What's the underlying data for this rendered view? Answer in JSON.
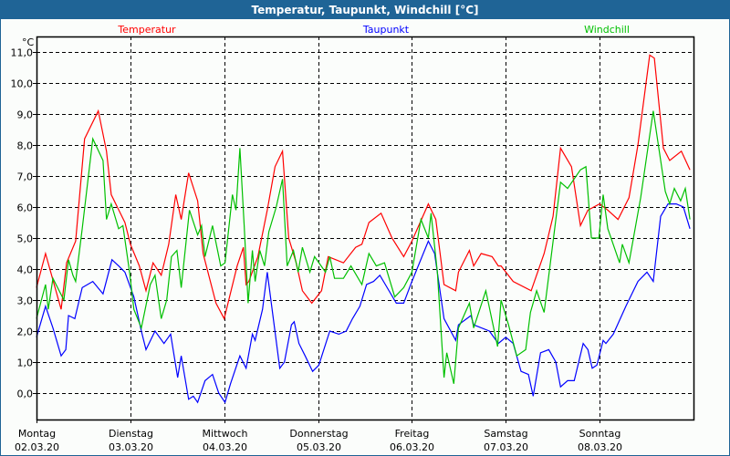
{
  "window": {
    "title": "Temperatur, Taupunkt, Windchill [°C]"
  },
  "chart_data": {
    "type": "line",
    "title": "Temperatur, Taupunkt, Windchill [°C]",
    "ylabel": "°C",
    "xlabel": "",
    "x_unit": "hours since Montag 02.03.20 00:00",
    "xlim": [
      0,
      168
    ],
    "ylim": [
      -0.85,
      11.5
    ],
    "grid": true,
    "yticks": [
      0,
      1,
      2,
      3,
      4,
      5,
      6,
      7,
      8,
      9,
      10,
      11
    ],
    "ytick_labels": [
      "0,0",
      "1,0",
      "2,0",
      "3,0",
      "4,0",
      "5,0",
      "6,0",
      "7,0",
      "8,0",
      "9,0",
      "10,0",
      "11,0"
    ],
    "xticks": [
      0,
      24,
      48,
      72,
      96,
      120,
      144
    ],
    "days": [
      {
        "name": "Montag",
        "date": "02.03.20"
      },
      {
        "name": "Dienstag",
        "date": "03.03.20"
      },
      {
        "name": "Mittwoch",
        "date": "04.03.20"
      },
      {
        "name": "Donnerstag",
        "date": "05.03.20"
      },
      {
        "name": "Freitag",
        "date": "06.03.20"
      },
      {
        "name": "Samstag",
        "date": "07.03.20"
      },
      {
        "name": "Sonntag",
        "date": "08.03.20"
      }
    ],
    "legend_position": "top",
    "series": [
      {
        "name": "Temperatur",
        "color": "#ff0000",
        "points": [
          [
            0,
            3.4
          ],
          [
            2.3,
            4.5
          ],
          [
            6.3,
            2.7
          ],
          [
            7.7,
            4.2
          ],
          [
            10,
            4.9
          ],
          [
            12.3,
            8.2
          ],
          [
            15.8,
            9.1
          ],
          [
            17.9,
            7.8
          ],
          [
            19.1,
            6.4
          ],
          [
            22.6,
            5.5
          ],
          [
            24,
            4.8
          ],
          [
            26.3,
            4.1
          ],
          [
            28,
            3.3
          ],
          [
            29.8,
            4.2
          ],
          [
            31.9,
            3.8
          ],
          [
            33.8,
            4.8
          ],
          [
            35.6,
            6.4
          ],
          [
            37,
            5.6
          ],
          [
            38.9,
            7.1
          ],
          [
            41.2,
            6.2
          ],
          [
            42.6,
            4.5
          ],
          [
            45.9,
            2.9
          ],
          [
            48,
            2.4
          ],
          [
            51.3,
            4.1
          ],
          [
            52.9,
            4.7
          ],
          [
            53.6,
            3.5
          ],
          [
            54.3,
            3.6
          ],
          [
            56.6,
            4.4
          ],
          [
            59,
            5.9
          ],
          [
            61,
            7.3
          ],
          [
            62.9,
            7.8
          ],
          [
            64.5,
            5.0
          ],
          [
            66.4,
            4.2
          ],
          [
            68,
            3.3
          ],
          [
            70.4,
            2.9
          ],
          [
            72.9,
            3.3
          ],
          [
            74.6,
            4.4
          ],
          [
            78.5,
            4.2
          ],
          [
            81.6,
            4.7
          ],
          [
            83.2,
            4.8
          ],
          [
            85,
            5.5
          ],
          [
            88.1,
            5.8
          ],
          [
            90.9,
            5.0
          ],
          [
            93.9,
            4.4
          ],
          [
            96,
            4.9
          ],
          [
            100.2,
            6.1
          ],
          [
            102.1,
            5.6
          ],
          [
            104.2,
            3.5
          ],
          [
            107.2,
            3.3
          ],
          [
            107.9,
            3.9
          ],
          [
            110.7,
            4.6
          ],
          [
            111.8,
            4.1
          ],
          [
            113.7,
            4.5
          ],
          [
            116.5,
            4.4
          ],
          [
            118.1,
            4.1
          ],
          [
            118.8,
            4.1
          ],
          [
            121.9,
            3.6
          ],
          [
            126.5,
            3.3
          ],
          [
            129.8,
            4.5
          ],
          [
            132.1,
            5.7
          ],
          [
            134,
            7.9
          ],
          [
            136.8,
            7.3
          ],
          [
            139.1,
            5.4
          ],
          [
            141,
            5.9
          ],
          [
            144,
            6.1
          ],
          [
            146.1,
            5.9
          ],
          [
            148.7,
            5.6
          ],
          [
            151.5,
            6.3
          ],
          [
            153.8,
            8.0
          ],
          [
            156.8,
            10.9
          ],
          [
            158,
            10.8
          ],
          [
            160.3,
            7.9
          ],
          [
            161.9,
            7.5
          ],
          [
            164.9,
            7.8
          ],
          [
            167.1,
            7.2
          ]
        ]
      },
      {
        "name": "Taupunkt",
        "color": "#0000ff",
        "points": [
          [
            0,
            1.8
          ],
          [
            2.3,
            2.8
          ],
          [
            4.2,
            2.1
          ],
          [
            6.3,
            1.2
          ],
          [
            7.5,
            1.4
          ],
          [
            8.2,
            2.5
          ],
          [
            9.8,
            2.4
          ],
          [
            11.7,
            3.4
          ],
          [
            14.4,
            3.6
          ],
          [
            17,
            3.2
          ],
          [
            19.3,
            4.3
          ],
          [
            21,
            4.1
          ],
          [
            22.6,
            3.9
          ],
          [
            24.9,
            3.1
          ],
          [
            26.8,
            2.0
          ],
          [
            28,
            1.4
          ],
          [
            30.3,
            2.0
          ],
          [
            32.6,
            1.6
          ],
          [
            34.3,
            1.9
          ],
          [
            36.1,
            0.5
          ],
          [
            37,
            1.2
          ],
          [
            38.9,
            -0.2
          ],
          [
            40.1,
            -0.1
          ],
          [
            41.2,
            -0.3
          ],
          [
            43.1,
            0.4
          ],
          [
            45,
            0.6
          ],
          [
            46.6,
            0.0
          ],
          [
            48.2,
            -0.3
          ],
          [
            49.6,
            0.3
          ],
          [
            52,
            1.2
          ],
          [
            53.6,
            0.8
          ],
          [
            55.2,
            1.9
          ],
          [
            55.9,
            1.7
          ],
          [
            57.8,
            2.7
          ],
          [
            59,
            3.9
          ],
          [
            62.2,
            0.8
          ],
          [
            63.4,
            1.0
          ],
          [
            65.2,
            2.2
          ],
          [
            65.9,
            2.3
          ],
          [
            67.1,
            1.6
          ],
          [
            68.7,
            1.2
          ],
          [
            70.6,
            0.7
          ],
          [
            72.2,
            0.9
          ],
          [
            75,
            2.0
          ],
          [
            77.3,
            1.9
          ],
          [
            79.2,
            2.0
          ],
          [
            80.8,
            2.4
          ],
          [
            82.7,
            2.8
          ],
          [
            84.4,
            3.5
          ],
          [
            86.2,
            3.6
          ],
          [
            87.8,
            3.8
          ],
          [
            89.2,
            3.5
          ],
          [
            92,
            2.9
          ],
          [
            93.9,
            2.9
          ],
          [
            96,
            3.6
          ],
          [
            100.2,
            4.9
          ],
          [
            101.8,
            4.5
          ],
          [
            104.2,
            2.4
          ],
          [
            107.2,
            1.7
          ],
          [
            107.9,
            2.2
          ],
          [
            111.1,
            2.5
          ],
          [
            111.8,
            2.2
          ],
          [
            115.8,
            2.0
          ],
          [
            118.1,
            1.6
          ],
          [
            120,
            1.8
          ],
          [
            121.9,
            1.6
          ],
          [
            123.9,
            0.7
          ],
          [
            125.8,
            0.6
          ],
          [
            127,
            -0.1
          ],
          [
            128.9,
            1.3
          ],
          [
            131,
            1.4
          ],
          [
            132.8,
            1.0
          ],
          [
            134,
            0.2
          ],
          [
            135.8,
            0.4
          ],
          [
            137.5,
            0.4
          ],
          [
            139.8,
            1.6
          ],
          [
            141,
            1.4
          ],
          [
            142.1,
            0.8
          ],
          [
            143.3,
            0.9
          ],
          [
            144.9,
            1.7
          ],
          [
            145.6,
            1.6
          ],
          [
            147.5,
            1.9
          ],
          [
            150.7,
            2.8
          ],
          [
            153.8,
            3.6
          ],
          [
            156.1,
            3.9
          ],
          [
            157.7,
            3.6
          ],
          [
            159.6,
            5.7
          ],
          [
            161.5,
            6.1
          ],
          [
            163.6,
            6.1
          ],
          [
            165.4,
            6.0
          ],
          [
            167.1,
            5.3
          ]
        ]
      },
      {
        "name": "Windchill",
        "color": "#00c000",
        "points": [
          [
            0,
            2.4
          ],
          [
            2.3,
            3.5
          ],
          [
            3,
            2.7
          ],
          [
            4.2,
            3.7
          ],
          [
            7,
            3.0
          ],
          [
            8.2,
            4.3
          ],
          [
            9.3,
            3.8
          ],
          [
            10,
            3.6
          ],
          [
            11.7,
            5.3
          ],
          [
            14.4,
            8.2
          ],
          [
            17,
            7.5
          ],
          [
            17.9,
            5.6
          ],
          [
            19.1,
            6.1
          ],
          [
            21,
            5.3
          ],
          [
            22.1,
            5.4
          ],
          [
            23.8,
            3.9
          ],
          [
            24.9,
            2.7
          ],
          [
            26.8,
            2.1
          ],
          [
            29.1,
            3.5
          ],
          [
            30.3,
            3.8
          ],
          [
            31.9,
            2.4
          ],
          [
            33.3,
            3.0
          ],
          [
            34.5,
            4.4
          ],
          [
            35.9,
            4.6
          ],
          [
            37,
            3.4
          ],
          [
            39.1,
            5.9
          ],
          [
            41.2,
            5.1
          ],
          [
            42.2,
            5.4
          ],
          [
            43.1,
            4.4
          ],
          [
            45,
            5.4
          ],
          [
            47.1,
            4.1
          ],
          [
            48.2,
            4.2
          ],
          [
            50.1,
            6.4
          ],
          [
            51,
            5.9
          ],
          [
            52,
            7.9
          ],
          [
            53.1,
            5.4
          ],
          [
            54.1,
            2.9
          ],
          [
            55.2,
            4.6
          ],
          [
            55.9,
            3.6
          ],
          [
            57.1,
            4.6
          ],
          [
            58.3,
            4.1
          ],
          [
            59.4,
            5.2
          ],
          [
            61.3,
            6.0
          ],
          [
            62.9,
            6.9
          ],
          [
            64.1,
            4.1
          ],
          [
            65.7,
            4.6
          ],
          [
            66.9,
            3.9
          ],
          [
            68,
            4.7
          ],
          [
            69.9,
            3.9
          ],
          [
            71.1,
            4.4
          ],
          [
            73.9,
            3.9
          ],
          [
            75,
            4.4
          ],
          [
            76.2,
            3.7
          ],
          [
            78.5,
            3.7
          ],
          [
            80.4,
            4.1
          ],
          [
            83.2,
            3.5
          ],
          [
            85,
            4.5
          ],
          [
            86.9,
            4.1
          ],
          [
            89,
            4.2
          ],
          [
            91.6,
            3.1
          ],
          [
            93.9,
            3.4
          ],
          [
            96,
            3.9
          ],
          [
            98.3,
            5.6
          ],
          [
            100.2,
            5.0
          ],
          [
            100.9,
            5.8
          ],
          [
            102.5,
            3.9
          ],
          [
            104.2,
            0.5
          ],
          [
            104.9,
            1.3
          ],
          [
            106.7,
            0.3
          ],
          [
            107.9,
            2.1
          ],
          [
            110.7,
            2.9
          ],
          [
            111.8,
            2.1
          ],
          [
            114.9,
            3.3
          ],
          [
            117.9,
            1.5
          ],
          [
            118.8,
            3.0
          ],
          [
            120.7,
            2.2
          ],
          [
            122.8,
            1.2
          ],
          [
            125.1,
            1.4
          ],
          [
            126.3,
            2.6
          ],
          [
            127.9,
            3.3
          ],
          [
            129.8,
            2.6
          ],
          [
            134,
            6.8
          ],
          [
            135.8,
            6.6
          ],
          [
            139.1,
            7.2
          ],
          [
            140.5,
            7.3
          ],
          [
            141.9,
            5.0
          ],
          [
            143.8,
            5.0
          ],
          [
            144.9,
            6.4
          ],
          [
            146.1,
            5.3
          ],
          [
            149.1,
            4.2
          ],
          [
            149.8,
            4.8
          ],
          [
            151.5,
            4.2
          ],
          [
            154.5,
            6.3
          ],
          [
            157.7,
            9.1
          ],
          [
            160.8,
            6.5
          ],
          [
            161.9,
            6.1
          ],
          [
            163.1,
            6.6
          ],
          [
            164.7,
            6.2
          ],
          [
            165.9,
            6.6
          ],
          [
            167.1,
            5.6
          ]
        ]
      }
    ]
  }
}
